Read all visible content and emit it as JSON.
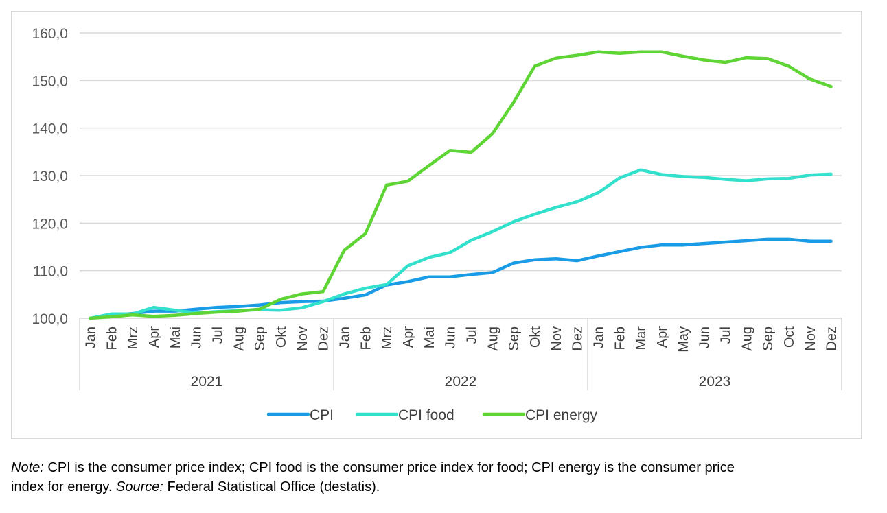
{
  "chart_data": {
    "type": "line",
    "title": "",
    "xlabel": "",
    "ylabel": "",
    "ylim": [
      100,
      160
    ],
    "yticks": [
      "100,0",
      "110,0",
      "120,0",
      "130,0",
      "140,0",
      "150,0",
      "160,0"
    ],
    "ytick_values": [
      100,
      110,
      120,
      130,
      140,
      150,
      160
    ],
    "grid": true,
    "legend_position": "bottom",
    "years": [
      {
        "label": "2021",
        "months": [
          "Jan",
          "Feb",
          "Mrz",
          "Apr",
          "Mai",
          "Jun",
          "Jul",
          "Aug",
          "Sep",
          "Okt",
          "Nov",
          "Dez"
        ]
      },
      {
        "label": "2022",
        "months": [
          "Jan",
          "Feb",
          "Mrz",
          "Apr",
          "Mai",
          "Jun",
          "Jul",
          "Aug",
          "Sep",
          "Okt",
          "Nov",
          "Dez"
        ]
      },
      {
        "label": "2023",
        "months": [
          "Jan",
          "Feb",
          "Mar",
          "Apr",
          "May",
          "Jun",
          "Jul",
          "Aug",
          "Sep",
          "Oct",
          "Nov",
          "Dez"
        ]
      }
    ],
    "series": [
      {
        "name": "CPI",
        "color": "#1a9be6",
        "values": [
          100.0,
          100.6,
          101.0,
          101.5,
          101.5,
          101.9,
          102.3,
          102.5,
          102.8,
          103.3,
          103.5,
          103.6,
          104.2,
          104.9,
          107.0,
          107.7,
          108.7,
          108.7,
          109.2,
          109.6,
          111.6,
          112.3,
          112.5,
          112.1,
          113.1,
          114.0,
          114.9,
          115.4,
          115.4,
          115.7,
          116.0,
          116.3,
          116.6,
          116.6,
          116.2,
          116.2
        ]
      },
      {
        "name": "CPI food",
        "color": "#33e0cc",
        "values": [
          100.0,
          100.9,
          100.9,
          102.3,
          101.7,
          101.1,
          101.4,
          101.6,
          101.8,
          101.7,
          102.2,
          103.5,
          105.1,
          106.3,
          107.1,
          111.0,
          112.8,
          113.8,
          116.4,
          118.2,
          120.3,
          121.9,
          123.3,
          124.5,
          126.4,
          129.5,
          131.2,
          130.2,
          129.8,
          129.6,
          129.2,
          128.9,
          129.3,
          129.4,
          130.1,
          130.3
        ]
      },
      {
        "name": "CPI energy",
        "color": "#5ed435",
        "values": [
          100.0,
          100.3,
          100.7,
          100.4,
          100.6,
          101.0,
          101.3,
          101.5,
          101.9,
          104.0,
          105.1,
          105.6,
          114.3,
          117.8,
          128.0,
          128.8,
          132.1,
          135.3,
          134.9,
          138.8,
          145.4,
          153.0,
          154.7,
          155.3,
          156.0,
          155.7,
          156.0,
          156.0,
          155.1,
          154.3,
          153.8,
          154.8,
          154.6,
          153.0,
          150.3,
          148.7
        ]
      }
    ]
  },
  "note": {
    "note_label": "Note:",
    "note_text": " CPI is the consumer price index; CPI food is the consumer price index for food; CPI energy is the consumer price",
    "line2_text": "index for energy. ",
    "source_label": "Source:",
    "source_text": " Federal Statistical Office (destatis)."
  }
}
